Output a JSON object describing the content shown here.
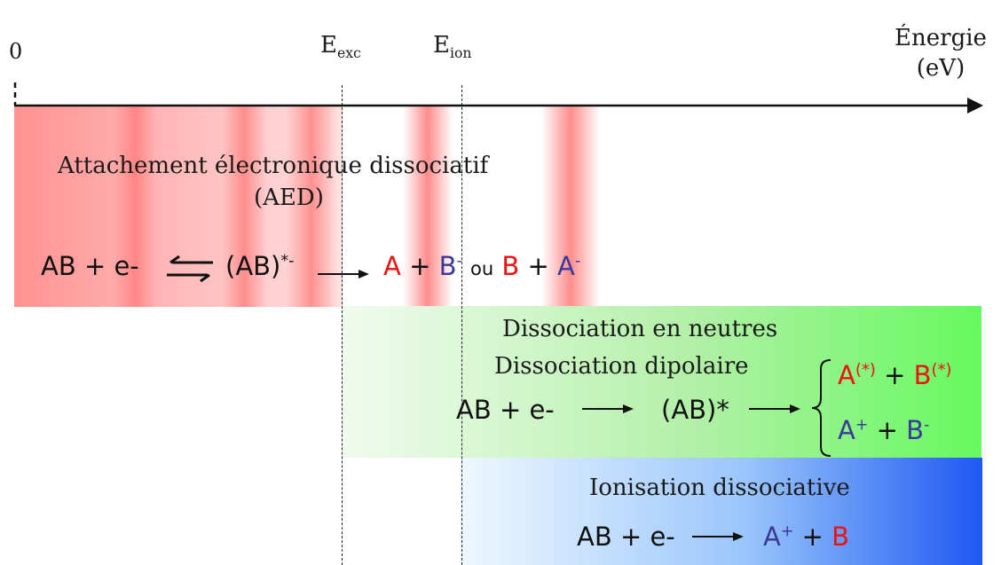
{
  "axis": {
    "origin_label": "0",
    "energy_label": "Énergie",
    "unit_label": "(eV)",
    "exc_label": {
      "main": "E",
      "sub": "exc"
    },
    "ion_label": {
      "main": "E",
      "sub": "ion"
    }
  },
  "aed": {
    "title": "Attachement électronique dissociatif",
    "abbr": "(AED)",
    "eq": {
      "reactant": "AB + e-",
      "intermediate": "(AB)",
      "intermediate_charge": "*-",
      "product_a": "A",
      "plus": "+",
      "product_b": "B",
      "b_charge": "-",
      "ou": "ou",
      "alt_b": "B",
      "alt_plus": "+",
      "alt_a": "A",
      "alt_a_charge": "-"
    }
  },
  "neutral": {
    "title1": "Dissociation en neutres",
    "title2": "Dissociation dipolaire",
    "eq": {
      "reactant": "AB + e-",
      "intermediate": "(AB)*"
    },
    "out1": {
      "a": "A",
      "a_sup": "(*)",
      "plus": "+",
      "b": "B",
      "b_sup": "(*)"
    },
    "out2": {
      "a": "A",
      "a_sup": "+",
      "plus": "+",
      "b": "B",
      "b_sup": "-"
    }
  },
  "ion": {
    "title": "Ionisation dissociative",
    "eq": {
      "reactant": "AB + e-",
      "a": "A",
      "a_sup": "+",
      "plus": "+",
      "b": "B"
    }
  },
  "colors": {
    "aed_red": "#ff8c8c",
    "neutral_green": "#66f95f",
    "ion_blue": "#1e58f2",
    "product_red": "#ee1111",
    "product_blue": "#3a3a9a"
  }
}
